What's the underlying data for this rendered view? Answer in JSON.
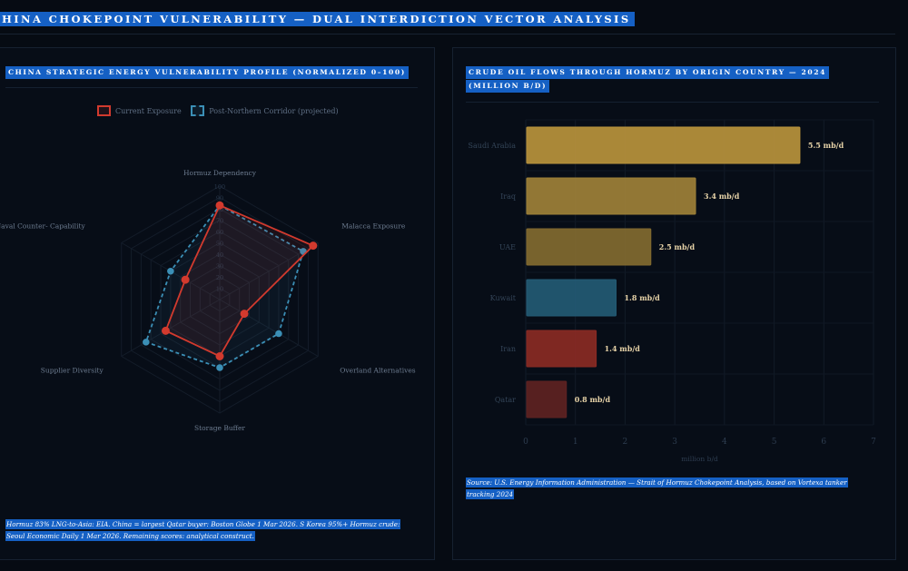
{
  "page": {
    "title": "HINA CHOKEPOINT VULNERABILITY — DUAL INTERDICTION VECTOR ANALYSIS"
  },
  "left_panel": {
    "title": "CHINA STRATEGIC ENERGY VULNERABILITY PROFILE (NORMALIZED 0–100)",
    "legend": [
      "Current Exposure",
      "Post-Northern Corridor (projected)"
    ],
    "source": "Hormuz 83% LNG-to-Asia: EIA. China = largest Qatar buyer: Boston Globe 1 Mar 2026. S Korea 95%+ Hormuz crude: Seoul Economic Daily 1 Mar 2026. Remaining scores: analytical construct."
  },
  "right_panel": {
    "title_line1": "CRUDE OIL FLOWS THROUGH HORMUZ BY ORIGIN COUNTRY — 2024",
    "title_line2": "(MILLION B/D)",
    "source": "Source: U.S. Energy Information Administration — Strait of Hormuz Chokepoint Analysis, based on Vortexa tanker tracking 2024"
  },
  "chart_data": [
    {
      "type": "radar",
      "title": "CHINA STRATEGIC ENERGY VULNERABILITY PROFILE (NORMALIZED 0–100)",
      "axes": [
        "Hormuz Dependency",
        "Malacca Exposure",
        "Overland Alternatives",
        "Storage Buffer",
        "Supplier Diversity",
        "Naval Counter- Capability"
      ],
      "rlim": [
        0,
        100
      ],
      "ticks": [
        "10",
        "20",
        "30",
        "40",
        "50",
        "60",
        "70",
        "80",
        "90",
        "100"
      ],
      "legend_position": "top",
      "series": [
        {
          "name": "Current Exposure",
          "values": [
            83,
            95,
            25,
            50,
            55,
            35
          ],
          "color": "#d23a2e",
          "style": "solid"
        },
        {
          "name": "Post-Northern Corridor (projected)",
          "values": [
            83,
            85,
            60,
            60,
            75,
            50
          ],
          "color": "#3b8fb6",
          "style": "dashed"
        }
      ]
    },
    {
      "type": "bar",
      "orientation": "horizontal",
      "title": "CRUDE OIL FLOWS THROUGH HORMUZ BY ORIGIN COUNTRY — 2024 (MILLION B/D)",
      "categories": [
        "Saudi Arabia",
        "Iraq",
        "UAE",
        "Kuwait",
        "Iran",
        "Qatar"
      ],
      "values": [
        5.5,
        3.4,
        2.5,
        1.8,
        1.4,
        0.8
      ],
      "labels": [
        "5.5 mb/d",
        "3.4 mb/d",
        "2.5 mb/d",
        "1.8 mb/d",
        "1.4 mb/d",
        "0.8 mb/d"
      ],
      "colors": [
        "#b8923c",
        "#9e8038",
        "#826a30",
        "#235a74",
        "#8a2a24",
        "#5e2222"
      ],
      "xlabel": "million b/d",
      "xlim": [
        0,
        7
      ],
      "xticks": [
        "0",
        "1",
        "2",
        "3",
        "4",
        "5",
        "6",
        "7"
      ],
      "grid": true
    }
  ]
}
